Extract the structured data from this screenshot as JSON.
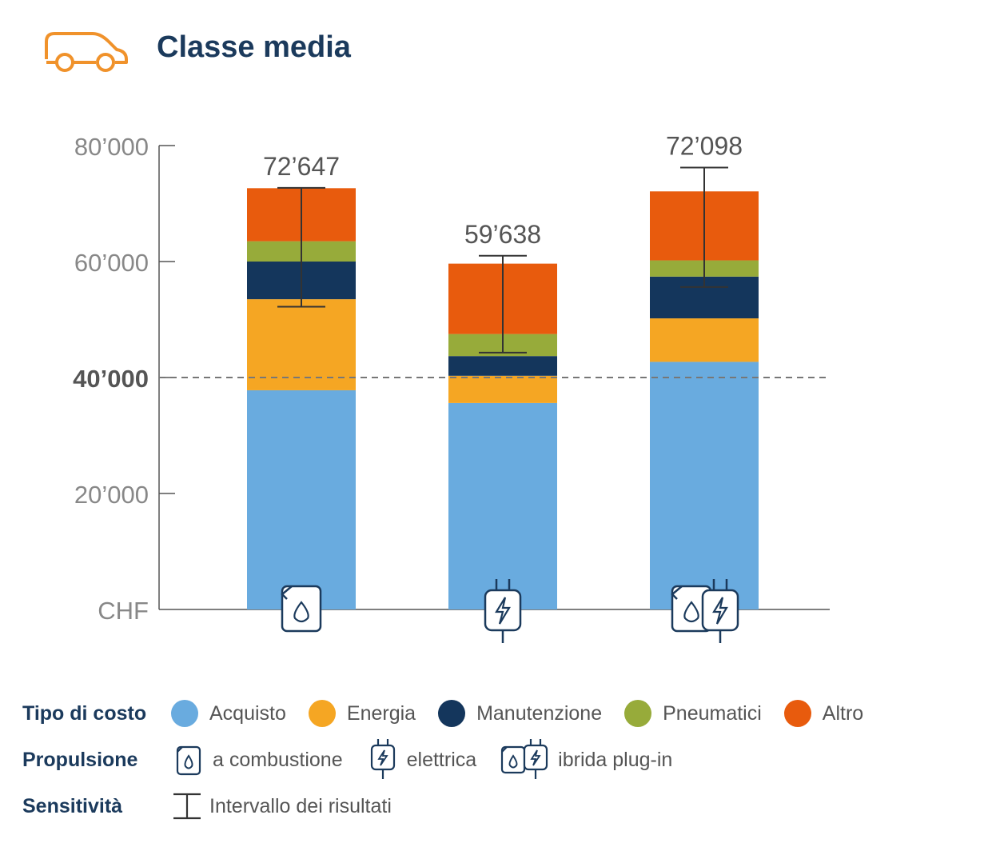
{
  "title": "Classe media",
  "chart_data": {
    "type": "stacked-bar",
    "title": "Classe media",
    "ylabel": "CHF",
    "ylim": [
      0,
      80000
    ],
    "yticks": [
      {
        "value": 0,
        "label": "CHF"
      },
      {
        "value": 20000,
        "label": "20’000"
      },
      {
        "value": 40000,
        "label": "40’000"
      },
      {
        "value": 60000,
        "label": "60’000"
      },
      {
        "value": 80000,
        "label": "80’000"
      }
    ],
    "reference_line": 40000,
    "categories": [
      "a combustione",
      "elettrica",
      "ibrida plug-in"
    ],
    "category_icons": [
      "fuel-can-icon",
      "plug-icon",
      "fuel-can-plug-icon"
    ],
    "series": [
      {
        "name": "Acquisto",
        "color": "#69abdf",
        "values": [
          37800,
          35600,
          42700
        ]
      },
      {
        "name": "Energia",
        "color": "#f5a623",
        "values": [
          15700,
          4700,
          7500
        ]
      },
      {
        "name": "Manutenzione",
        "color": "#14365c",
        "values": [
          6500,
          3400,
          7200
        ]
      },
      {
        "name": "Pneumatici",
        "color": "#97ab3a",
        "values": [
          3500,
          3800,
          2800
        ]
      },
      {
        "name": "Altro",
        "color": "#e85b0d",
        "values": [
          9147,
          12138,
          11898
        ]
      }
    ],
    "totals": [
      72647,
      59638,
      72098
    ],
    "total_labels": [
      "72’647",
      "59’638",
      "72’098"
    ],
    "error_bars": [
      {
        "low": 52200,
        "high": 72700
      },
      {
        "low": 44300,
        "high": 61000
      },
      {
        "low": 55600,
        "high": 76200
      }
    ]
  },
  "legend": {
    "cost_heading": "Tipo di costo",
    "cost_items": [
      {
        "label": "Acquisto",
        "color": "#69abdf"
      },
      {
        "label": "Energia",
        "color": "#f5a623"
      },
      {
        "label": "Manutenzione",
        "color": "#14365c"
      },
      {
        "label": "Pneumatici",
        "color": "#97ab3a"
      },
      {
        "label": "Altro",
        "color": "#e85b0d"
      }
    ],
    "propulsion_heading": "Propulsione",
    "propulsion_items": [
      {
        "label": "a combustione",
        "icon": "fuel-can-icon"
      },
      {
        "label": "elettrica",
        "icon": "plug-icon"
      },
      {
        "label": "ibrida plug-in",
        "icon": "fuel-can-plug-icon"
      }
    ],
    "sensitivity_heading": "Sensitività",
    "sensitivity_label": "Intervallo dei risultati"
  },
  "colors": {
    "title": "#1b3a5c",
    "axis": "#555555",
    "car_icon": "#f0922b",
    "icon_stroke": "#1b3a5c"
  }
}
